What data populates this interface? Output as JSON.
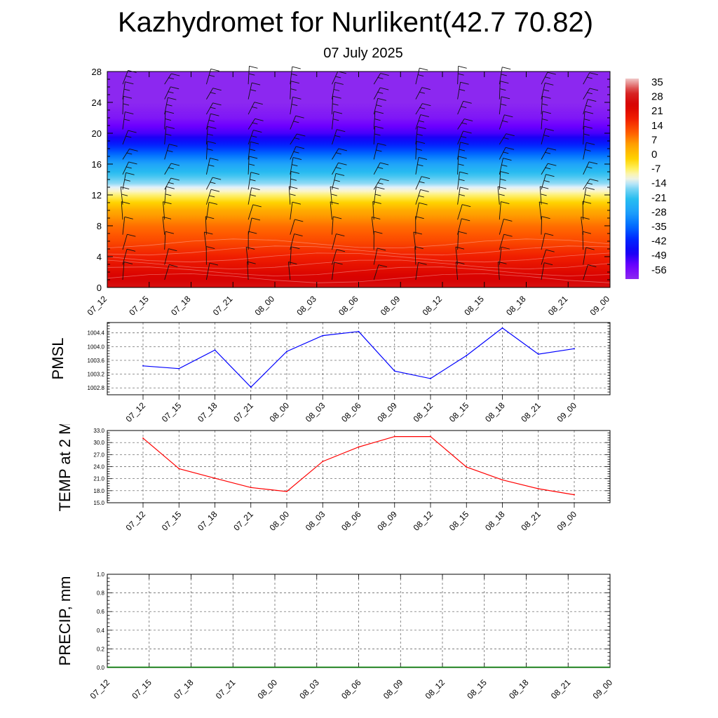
{
  "title": "Kazhydromet for Nurlikent(42.7 70.82)",
  "subtitle": "07 July 2025",
  "colors": {
    "pmsl_line": "#0000ff",
    "temp_line": "#ff0000",
    "precip_line": "#008000",
    "gridline": "#555555"
  },
  "chart_data": [
    {
      "type": "heatmap",
      "title": "Kazhydromet for Nurlikent(42.7 70.82)",
      "subtitle": "07 July 2025",
      "x_categories": [
        "07_12",
        "07_15",
        "07_18",
        "07_21",
        "08_00",
        "08_03",
        "08_06",
        "08_09",
        "08_12",
        "08_15",
        "08_18",
        "08_21",
        "09_00"
      ],
      "y_ticks": [
        0,
        4,
        8,
        12,
        16,
        20,
        24,
        28
      ],
      "ylim": [
        0,
        28
      ],
      "colorbar_labels": [
        "35",
        "28",
        "21",
        "14",
        "7",
        "0",
        "-7",
        "-14",
        "-21",
        "-28",
        "-35",
        "-42",
        "-49",
        "-56"
      ],
      "colorbar_range": [
        -63,
        42
      ],
      "temperature_profile": {
        "levels": [
          0,
          2,
          4,
          6,
          8,
          10,
          12,
          13,
          14,
          16,
          18,
          20,
          21,
          22,
          24,
          28
        ],
        "values": [
          31,
          26,
          21,
          16,
          12,
          6,
          -6,
          -12,
          -17,
          -27,
          -40,
          -53,
          -56,
          -60,
          -63,
          -63
        ]
      },
      "wind_barbs": true
    },
    {
      "type": "line",
      "ylabel": "PMSL",
      "x_categories": [
        "07_12",
        "07_15",
        "07_18",
        "07_21",
        "08_00",
        "08_03",
        "08_06",
        "08_09",
        "08_12",
        "08_15",
        "08_18",
        "08_21",
        "09_00"
      ],
      "series": [
        {
          "values": [
            1003.44,
            1003.36,
            1003.9,
            1002.82,
            1003.86,
            1004.32,
            1004.44,
            1003.29,
            1003.07,
            1003.74,
            1004.54,
            1003.78,
            1003.94
          ]
        }
      ],
      "y_ticks": [
        "1002.8",
        "1003.2",
        "1003.6",
        "1004.0",
        "1004.4"
      ],
      "ylim": [
        1002.6,
        1004.7
      ],
      "grid": true
    },
    {
      "type": "line",
      "ylabel": "TEMP at 2 M",
      "x_categories": [
        "07_12",
        "07_15",
        "07_18",
        "07_21",
        "08_00",
        "08_03",
        "08_06",
        "08_09",
        "08_12",
        "08_15",
        "08_18",
        "08_21",
        "09_00"
      ],
      "series": [
        {
          "values": [
            31.1,
            23.5,
            21.1,
            18.8,
            17.8,
            25.3,
            28.9,
            31.5,
            31.5,
            23.9,
            20.7,
            18.5,
            17.0
          ]
        }
      ],
      "y_ticks": [
        "15.0",
        "18.0",
        "21.0",
        "24.0",
        "27.0",
        "30.0",
        "33.0"
      ],
      "ylim": [
        15,
        33
      ],
      "grid": true
    },
    {
      "type": "line",
      "ylabel": "PRECIP, mm",
      "x_categories": [
        "07_12",
        "07_15",
        "07_18",
        "07_21",
        "08_00",
        "08_03",
        "08_06",
        "08_09",
        "08_12",
        "08_15",
        "08_18",
        "08_21",
        "09_00"
      ],
      "series": [
        {
          "values": [
            0,
            0,
            0,
            0,
            0,
            0,
            0,
            0,
            0,
            0,
            0,
            0,
            0
          ]
        }
      ],
      "y_ticks": [
        "0.0",
        "0.2",
        "0.4",
        "0.6",
        "0.8",
        "1.0"
      ],
      "ylim": [
        0,
        1
      ],
      "grid": true
    }
  ]
}
